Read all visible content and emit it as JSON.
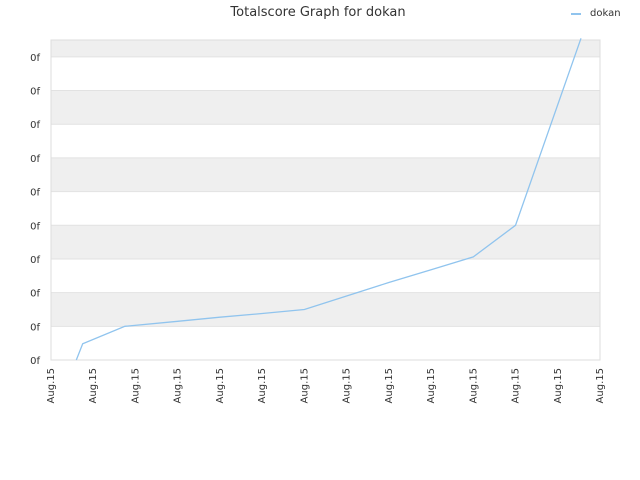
{
  "chart_data": {
    "type": "line",
    "title": "Totalscore Graph for dokan",
    "xlabel": "",
    "ylabel": "",
    "legend": {
      "position": "top-right"
    },
    "grid": true,
    "band_colors": [
      "#efefef",
      "#ffffff"
    ],
    "series_color": "#90c4ee",
    "x_tick_labels": [
      "Aug.15",
      "Aug.15",
      "Aug.15",
      "Aug.15",
      "Aug.15",
      "Aug.15",
      "Aug.15",
      "Aug.15",
      "Aug.15",
      "Aug.15",
      "Aug.15",
      "Aug.15",
      "Aug.15",
      "Aug.15"
    ],
    "y_tick_labels": [
      "0f",
      "0f",
      "0f",
      "0f",
      "0f",
      "0f",
      "0f",
      "0f",
      "0f",
      "0f"
    ],
    "xlim": [
      0,
      13
    ],
    "ylim": [
      0,
      9.5
    ],
    "series": [
      {
        "name": "dokan",
        "x": [
          0.6,
          0.75,
          1.75,
          3.0,
          4.0,
          5.0,
          6.0,
          7.0,
          8.0,
          9.0,
          10.0,
          11.0,
          12.55
        ],
        "y": [
          0,
          0.48,
          1.0,
          1.15,
          1.27,
          1.38,
          1.5,
          1.9,
          2.3,
          2.68,
          3.06,
          4.0,
          9.55
        ]
      }
    ]
  }
}
